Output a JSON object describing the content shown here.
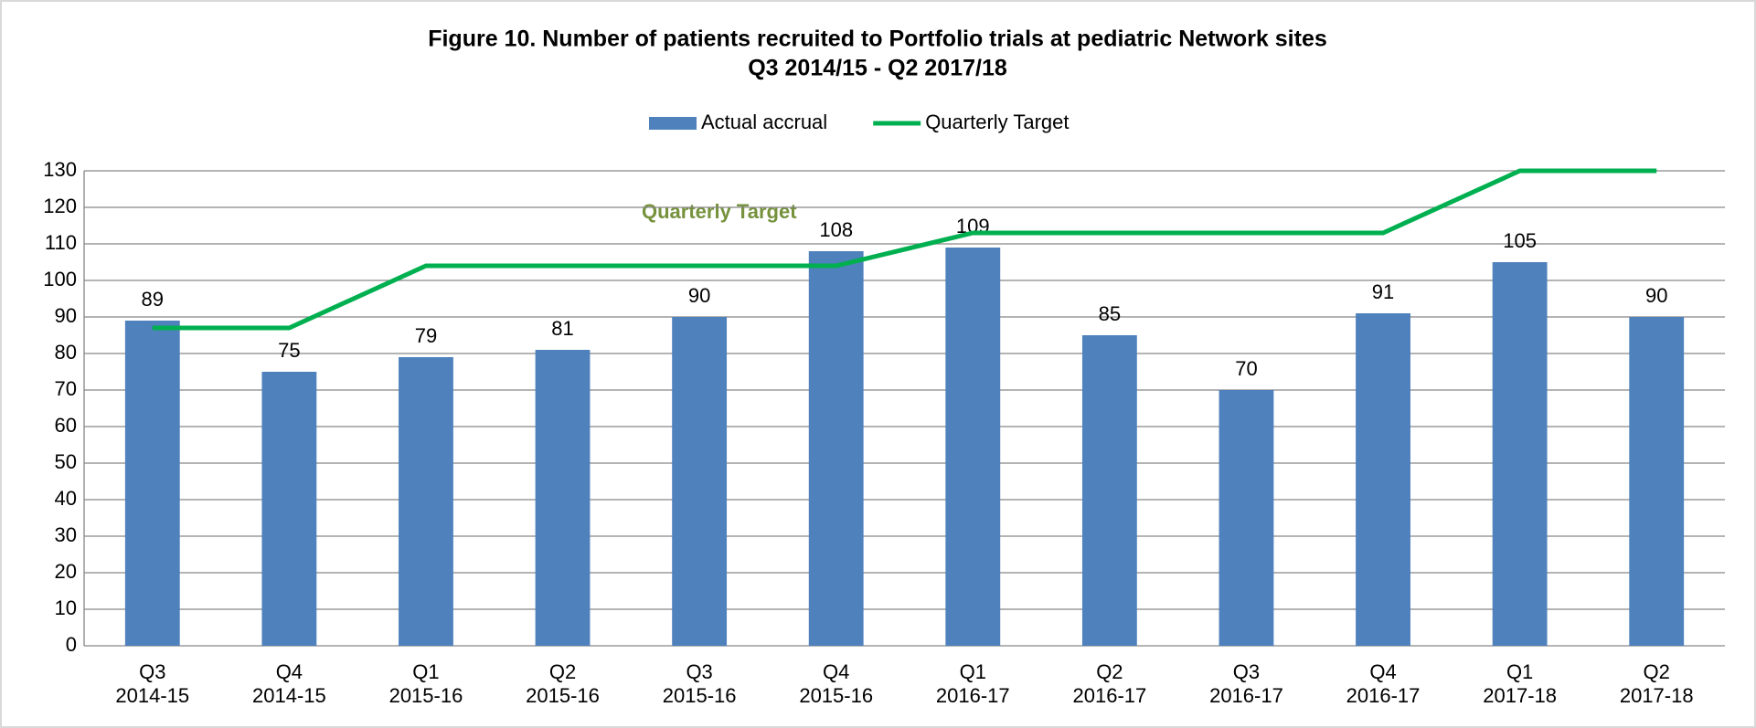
{
  "chart_data": {
    "type": "bar",
    "title": "Figure 10. Number of patients recruited to Portfolio trials at pediatric Network sites",
    "subtitle": "Q3 2014/15 - Q2 2017/18",
    "categories": [
      [
        "Q3",
        "2014-15"
      ],
      [
        "Q4",
        "2014-15"
      ],
      [
        "Q1",
        "2015-16"
      ],
      [
        "Q2",
        "2015-16"
      ],
      [
        "Q3",
        "2015-16"
      ],
      [
        "Q4",
        "2015-16"
      ],
      [
        "Q1",
        "2016-17"
      ],
      [
        "Q2",
        "2016-17"
      ],
      [
        "Q3",
        "2016-17"
      ],
      [
        "Q4",
        "2016-17"
      ],
      [
        "Q1",
        "2017-18"
      ],
      [
        "Q2",
        "2017-18"
      ]
    ],
    "series": [
      {
        "name": "Actual accrual",
        "type": "bar",
        "color": "#4f81bd",
        "values": [
          89,
          75,
          79,
          81,
          90,
          108,
          109,
          85,
          70,
          91,
          105,
          90
        ]
      },
      {
        "name": "Quarterly Target",
        "type": "line",
        "color": "#00b050",
        "values": [
          87,
          87,
          104,
          104,
          104,
          104,
          113,
          113,
          113,
          113,
          130,
          130
        ]
      }
    ],
    "annotation": "Quarterly Target",
    "ylim": [
      0,
      130
    ],
    "yticks": [
      0,
      10,
      20,
      30,
      40,
      50,
      60,
      70,
      80,
      90,
      100,
      110,
      120,
      130
    ],
    "grid": true,
    "legend": "top"
  }
}
